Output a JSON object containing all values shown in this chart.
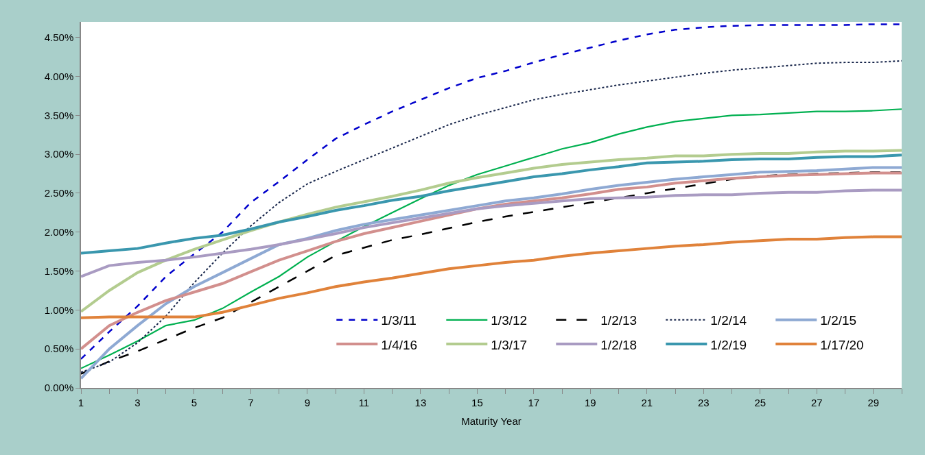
{
  "chart_data": {
    "type": "line",
    "xlabel": "Maturity Year",
    "x": [
      1,
      2,
      3,
      4,
      5,
      6,
      7,
      8,
      9,
      10,
      11,
      12,
      13,
      14,
      15,
      16,
      17,
      18,
      19,
      20,
      21,
      22,
      23,
      24,
      25,
      26,
      27,
      28,
      29,
      30
    ],
    "xlim": [
      1,
      30
    ],
    "xticks": [
      1,
      {
        "value": 2,
        "label": null
      },
      3,
      {
        "value": 4,
        "label": null
      },
      5,
      {
        "value": 6,
        "label": null
      },
      7,
      {
        "value": 8,
        "label": null
      },
      9,
      {
        "value": 10,
        "label": null
      },
      11,
      {
        "value": 12,
        "label": null
      },
      13,
      {
        "value": 14,
        "label": null
      },
      15,
      {
        "value": 16,
        "label": null
      },
      17,
      {
        "value": 18,
        "label": null
      },
      19,
      {
        "value": 20,
        "label": null
      },
      21,
      {
        "value": 22,
        "label": null
      },
      23,
      {
        "value": 24,
        "label": null
      },
      25,
      {
        "value": 26,
        "label": null
      },
      27,
      {
        "value": 28,
        "label": null
      },
      29,
      {
        "value": 30,
        "label": null
      }
    ],
    "ylim": [
      0,
      4.7
    ],
    "yticks": [
      {
        "value": 0,
        "label": "0.00%"
      },
      {
        "value": 0.5,
        "label": "0.50%"
      },
      {
        "value": 1,
        "label": "1.00%"
      },
      {
        "value": 1.5,
        "label": "1.50%"
      },
      {
        "value": 2,
        "label": "2.00%"
      },
      {
        "value": 2.5,
        "label": "2.50%"
      },
      {
        "value": 3,
        "label": "3.00%"
      },
      {
        "value": 3.5,
        "label": "3.50%"
      },
      {
        "value": 4,
        "label": "4.00%"
      },
      {
        "value": 4.5,
        "label": "4.50%"
      }
    ],
    "legend": "bottom right",
    "marker": "none",
    "series": [
      {
        "name": "1/3/11",
        "color": "#0000cc",
        "line_style": "dashed",
        "values": [
          0.37,
          0.72,
          1.05,
          1.43,
          1.72,
          2.0,
          2.38,
          2.65,
          2.93,
          3.2,
          3.38,
          3.55,
          3.7,
          3.85,
          3.98,
          4.07,
          4.18,
          4.28,
          4.37,
          4.46,
          4.54,
          4.6,
          4.63,
          4.65,
          4.66,
          4.66,
          4.66,
          4.66,
          4.67,
          4.67
        ]
      },
      {
        "name": "1/3/12",
        "color": "#00b050",
        "line_style": "solid",
        "values": [
          0.25,
          0.42,
          0.6,
          0.8,
          0.87,
          1.02,
          1.23,
          1.43,
          1.68,
          1.88,
          2.07,
          2.25,
          2.43,
          2.6,
          2.74,
          2.85,
          2.96,
          3.07,
          3.15,
          3.26,
          3.35,
          3.42,
          3.46,
          3.5,
          3.51,
          3.53,
          3.55,
          3.55,
          3.56,
          3.58
        ]
      },
      {
        "name": "1/2/13",
        "color": "#000000",
        "line_style": "dashed",
        "values": [
          0.18,
          0.34,
          0.47,
          0.62,
          0.77,
          0.9,
          1.1,
          1.3,
          1.5,
          1.7,
          1.8,
          1.9,
          1.97,
          2.05,
          2.13,
          2.2,
          2.26,
          2.32,
          2.38,
          2.44,
          2.5,
          2.56,
          2.62,
          2.68,
          2.72,
          2.74,
          2.75,
          2.76,
          2.77,
          2.77
        ]
      },
      {
        "name": "1/2/14",
        "color": "#17254a",
        "line_style": "dotted",
        "values": [
          0.2,
          0.33,
          0.58,
          0.92,
          1.35,
          1.73,
          2.08,
          2.38,
          2.62,
          2.78,
          2.93,
          3.08,
          3.23,
          3.38,
          3.5,
          3.6,
          3.7,
          3.77,
          3.83,
          3.89,
          3.94,
          3.99,
          4.04,
          4.08,
          4.11,
          4.14,
          4.17,
          4.18,
          4.18,
          4.2
        ]
      },
      {
        "name": "1/2/15",
        "color": "#8ea9d3",
        "line_style": "solid",
        "values": [
          0.12,
          0.5,
          0.8,
          1.08,
          1.3,
          1.48,
          1.66,
          1.84,
          1.92,
          2.02,
          2.1,
          2.16,
          2.22,
          2.28,
          2.34,
          2.4,
          2.44,
          2.49,
          2.55,
          2.6,
          2.64,
          2.68,
          2.71,
          2.74,
          2.77,
          2.78,
          2.79,
          2.81,
          2.83,
          2.83
        ]
      },
      {
        "name": "1/4/16",
        "color": "#d28f8d",
        "line_style": "solid",
        "values": [
          0.5,
          0.8,
          0.97,
          1.12,
          1.23,
          1.34,
          1.49,
          1.64,
          1.76,
          1.88,
          1.98,
          2.06,
          2.14,
          2.22,
          2.3,
          2.36,
          2.4,
          2.44,
          2.49,
          2.55,
          2.58,
          2.63,
          2.66,
          2.69,
          2.71,
          2.73,
          2.74,
          2.75,
          2.76,
          2.76
        ]
      },
      {
        "name": "1/3/17",
        "color": "#b3cc8f",
        "line_style": "solid",
        "values": [
          0.98,
          1.25,
          1.48,
          1.64,
          1.78,
          1.9,
          2.02,
          2.13,
          2.23,
          2.32,
          2.39,
          2.46,
          2.54,
          2.63,
          2.7,
          2.76,
          2.82,
          2.87,
          2.9,
          2.93,
          2.95,
          2.98,
          2.98,
          3.0,
          3.01,
          3.01,
          3.03,
          3.04,
          3.04,
          3.05
        ]
      },
      {
        "name": "1/2/18",
        "color": "#a99bc2",
        "line_style": "solid",
        "values": [
          1.43,
          1.57,
          1.61,
          1.64,
          1.68,
          1.73,
          1.78,
          1.84,
          1.91,
          1.98,
          2.06,
          2.12,
          2.18,
          2.24,
          2.3,
          2.34,
          2.37,
          2.4,
          2.43,
          2.44,
          2.45,
          2.47,
          2.48,
          2.48,
          2.5,
          2.51,
          2.51,
          2.53,
          2.54,
          2.54
        ]
      },
      {
        "name": "1/2/19",
        "color": "#3a97ae",
        "line_style": "solid",
        "values": [
          1.73,
          1.76,
          1.79,
          1.86,
          1.92,
          1.96,
          2.04,
          2.13,
          2.2,
          2.28,
          2.34,
          2.41,
          2.46,
          2.53,
          2.59,
          2.65,
          2.71,
          2.75,
          2.8,
          2.84,
          2.89,
          2.9,
          2.91,
          2.93,
          2.94,
          2.94,
          2.96,
          2.97,
          2.97,
          2.99
        ]
      },
      {
        "name": "1/17/20",
        "color": "#e0823a",
        "line_style": "solid",
        "values": [
          0.9,
          0.91,
          0.91,
          0.91,
          0.91,
          0.97,
          1.06,
          1.15,
          1.22,
          1.3,
          1.36,
          1.41,
          1.47,
          1.53,
          1.57,
          1.61,
          1.64,
          1.69,
          1.73,
          1.76,
          1.79,
          1.82,
          1.84,
          1.87,
          1.89,
          1.91,
          1.91,
          1.93,
          1.94,
          1.94
        ]
      }
    ]
  }
}
